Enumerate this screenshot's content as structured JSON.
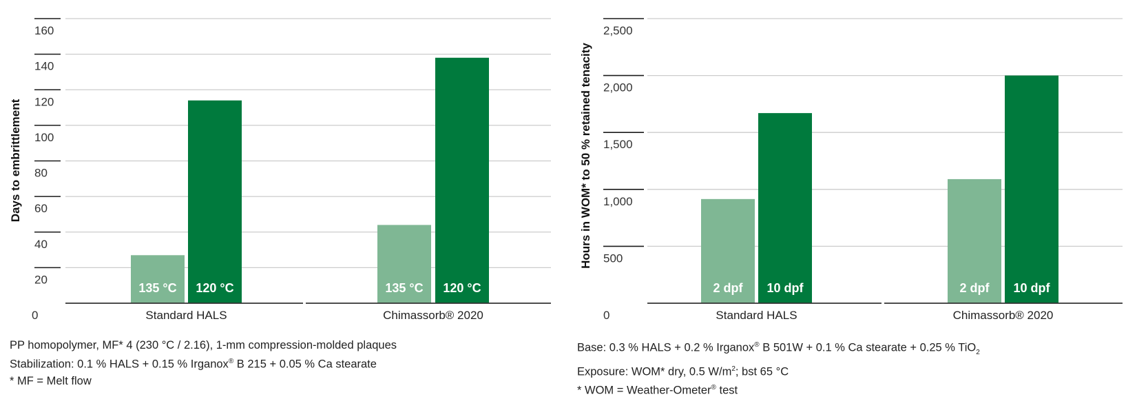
{
  "colors": {
    "light_bar": "#7fb794",
    "dark_bar": "#007a3d",
    "grid": "#cccccc",
    "tick_mark": "#1a1a1a",
    "baseline": "#333333"
  },
  "chart_data": [
    {
      "type": "bar",
      "ylabel": "Days to embrittlement",
      "ylim": [
        0,
        160
      ],
      "yticks": [
        0,
        20,
        40,
        60,
        80,
        100,
        120,
        140,
        160
      ],
      "categories": [
        "Standard HALS",
        "Chimassorb® 2020"
      ],
      "series": [
        {
          "name": "135 °C",
          "label": "135 °C",
          "values": [
            27,
            44
          ]
        },
        {
          "name": "120 °C",
          "label": "120 °C",
          "values": [
            114,
            138
          ]
        }
      ]
    },
    {
      "type": "bar",
      "ylabel": "Hours in WOM* to 50 % retained tenacity",
      "ylim": [
        0,
        2500
      ],
      "yticks": [
        0,
        500,
        1000,
        1500,
        2000,
        2500
      ],
      "ytick_labels": [
        "0",
        "500",
        "1,000",
        "1,500",
        "2,000",
        "2,500"
      ],
      "categories": [
        "Standard HALS",
        "Chimassorb® 2020"
      ],
      "series": [
        {
          "name": "2 dpf",
          "label": "2 dpf",
          "values": [
            915,
            1090
          ]
        },
        {
          "name": "10 dpf",
          "label": "10 dpf",
          "values": [
            1670,
            2000
          ]
        }
      ]
    }
  ],
  "notes_left": {
    "line1": "PP homopolymer, MF* 4 (230 °C / 2.16), 1-mm compression-molded plaques",
    "line2_a": "Stabilization: 0.1 % HALS + 0.15 % Irganox",
    "line2_sup": "®",
    "line2_b": " B 215 + 0.05 % Ca stearate",
    "line3": "* MF = Melt flow"
  },
  "notes_right": {
    "line1_a": "Base: 0.3 % HALS + 0.2 % Irganox",
    "line1_sup": "®",
    "line1_b": " B 501W + 0.1 % Ca stearate + 0.25 % TiO",
    "line1_sub": "2",
    "line2_a": "Exposure: WOM* dry, 0.5 W/m",
    "line2_sup": "2",
    "line2_b": "; bst 65 °C",
    "line3_a": "* WOM = Weather-Ometer",
    "line3_sup": "®",
    "line3_b": " test"
  }
}
